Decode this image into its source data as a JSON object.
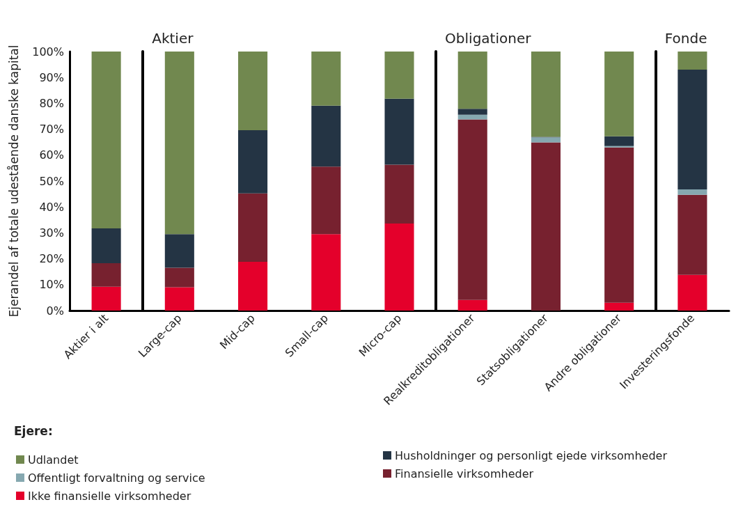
{
  "chart_data": [
    {
      "type": "bar",
      "stacked": true,
      "ylabel": "Ejerandel af totale udestående danske kapital",
      "legend_title": "Ejere:",
      "categories": [
        "Aktier i alt"
      ],
      "series": [
        {
          "name": "Ikke finansielle virksomheder",
          "color": "#e4002b",
          "values": [
            9.2
          ]
        },
        {
          "name": "Finansielle virksomheder",
          "color": "#77212f",
          "values": [
            9.1
          ]
        },
        {
          "name": "Offentligt forvaltning og service",
          "color": "#86a8b0",
          "values": [
            0
          ]
        },
        {
          "name": "Husholdninger og personligt ejede virksomheder",
          "color": "#243444",
          "values": [
            13.4
          ]
        },
        {
          "name": "Udlandet",
          "color": "#71884f",
          "values": [
            68.3
          ]
        }
      ],
      "ylim": [
        0,
        100
      ],
      "yticks": [
        {
          "value": 0,
          "label": "0%"
        },
        {
          "value": 10,
          "label": "10%"
        },
        {
          "value": 20,
          "label": "20%"
        },
        {
          "value": 30,
          "label": "30%"
        },
        {
          "value": 40,
          "label": "40%"
        },
        {
          "value": 50,
          "label": "50%"
        },
        {
          "value": 60,
          "label": "60%"
        },
        {
          "value": 70,
          "label": "70%"
        },
        {
          "value": 80,
          "label": "80%"
        },
        {
          "value": 90,
          "label": "90%"
        },
        {
          "value": 100,
          "label": "100%"
        }
      ],
      "grid": false,
      "legend": "bottom"
    },
    {
      "type": "bar",
      "stacked": true,
      "title": "Aktier",
      "categories": [
        "Large-cap",
        "Mid-cap",
        "Small-cap",
        "Micro-cap"
      ],
      "series": [
        {
          "color": "#e4002b",
          "values": [
            9.0,
            18.8,
            29.5,
            33.6
          ]
        },
        {
          "color": "#77212f",
          "values": [
            7.5,
            26.4,
            26.1,
            22.7
          ]
        },
        {
          "color": "#86a8b0",
          "values": [
            0,
            0,
            0,
            0
          ]
        },
        {
          "color": "#243444",
          "values": [
            13.0,
            24.4,
            23.5,
            25.5
          ]
        },
        {
          "color": "#71884f",
          "values": [
            70.5,
            30.4,
            20.9,
            18.2
          ]
        }
      ],
      "ylim": [
        0,
        100
      ],
      "tick_labels": "x",
      "grid": false
    },
    {
      "type": "bar",
      "stacked": true,
      "title": "Obligationer",
      "categories": [
        "Realkreditobligationer",
        "Statsobligationer",
        "Andre obligationer"
      ],
      "series": [
        {
          "color": "#e4002b",
          "values": [
            4.1,
            0,
            3.0
          ]
        },
        {
          "color": "#77212f",
          "values": [
            69.7,
            64.9,
            60.0
          ]
        },
        {
          "color": "#86a8b0",
          "values": [
            1.8,
            2.0,
            0.5
          ]
        },
        {
          "color": "#243444",
          "values": [
            2.3,
            0.2,
            3.8
          ]
        },
        {
          "color": "#71884f",
          "values": [
            22.1,
            32.9,
            32.7
          ]
        }
      ],
      "ylim": [
        0,
        100
      ],
      "tick_labels": "x",
      "grid": false
    },
    {
      "type": "bar",
      "stacked": true,
      "title": "Fonde",
      "categories": [
        "Investeringsfonde"
      ],
      "series": [
        {
          "color": "#e4002b",
          "values": [
            13.8
          ]
        },
        {
          "color": "#77212f",
          "values": [
            30.9
          ]
        },
        {
          "color": "#86a8b0",
          "values": [
            2.1
          ]
        },
        {
          "color": "#243444",
          "values": [
            46.2
          ]
        },
        {
          "color": "#71884f",
          "values": [
            7.0
          ]
        }
      ],
      "ylim": [
        0,
        100
      ],
      "tick_labels": "x",
      "grid": false
    }
  ]
}
